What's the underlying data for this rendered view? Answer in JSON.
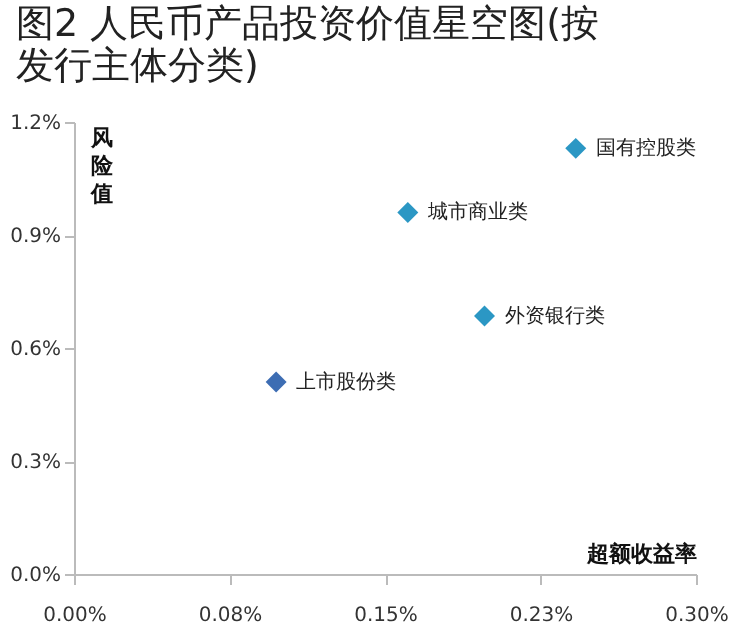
{
  "chart_data": {
    "type": "scatter",
    "title": "图2 人民币产品投资价值星空图(按发行主体分类)",
    "xlabel": "超额收益率",
    "ylabel": "风险值",
    "x": [
      0.0975,
      0.161,
      0.198,
      0.242
    ],
    "values": [
      0.51,
      0.96,
      0.685,
      1.13
    ],
    "colors": [
      "#3d6db3",
      "#2b97c4",
      "#2b97c4",
      "#2b97c4"
    ],
    "marker": "diamond",
    "xlim": [
      0,
      0.3
    ],
    "xticks": [
      {
        "value": 0,
        "label": "0.00%"
      },
      {
        "value": 0.075,
        "label": "0.08%"
      },
      {
        "value": 0.15,
        "label": "0.15%"
      },
      {
        "value": 0.225,
        "label": "0.23%"
      },
      {
        "value": 0.3,
        "label": "0.30%"
      }
    ],
    "ylim": [
      0,
      1.2
    ],
    "yticks": [
      {
        "value": 0,
        "label": "0.0%"
      },
      {
        "value": 0.3,
        "label": "0.3%"
      },
      {
        "value": 0.6,
        "label": "0.6%"
      },
      {
        "value": 0.9,
        "label": "0.9%"
      },
      {
        "value": 1.2,
        "label": "1.2%"
      }
    ],
    "annotations": [
      {
        "text": "上市股份类",
        "x": 0.0975,
        "y": 0.51
      },
      {
        "text": "城市商业类",
        "x": 0.161,
        "y": 0.96
      },
      {
        "text": "外资银行类",
        "x": 0.198,
        "y": 0.685
      },
      {
        "text": "国有控股类",
        "x": 0.242,
        "y": 1.13
      }
    ]
  }
}
